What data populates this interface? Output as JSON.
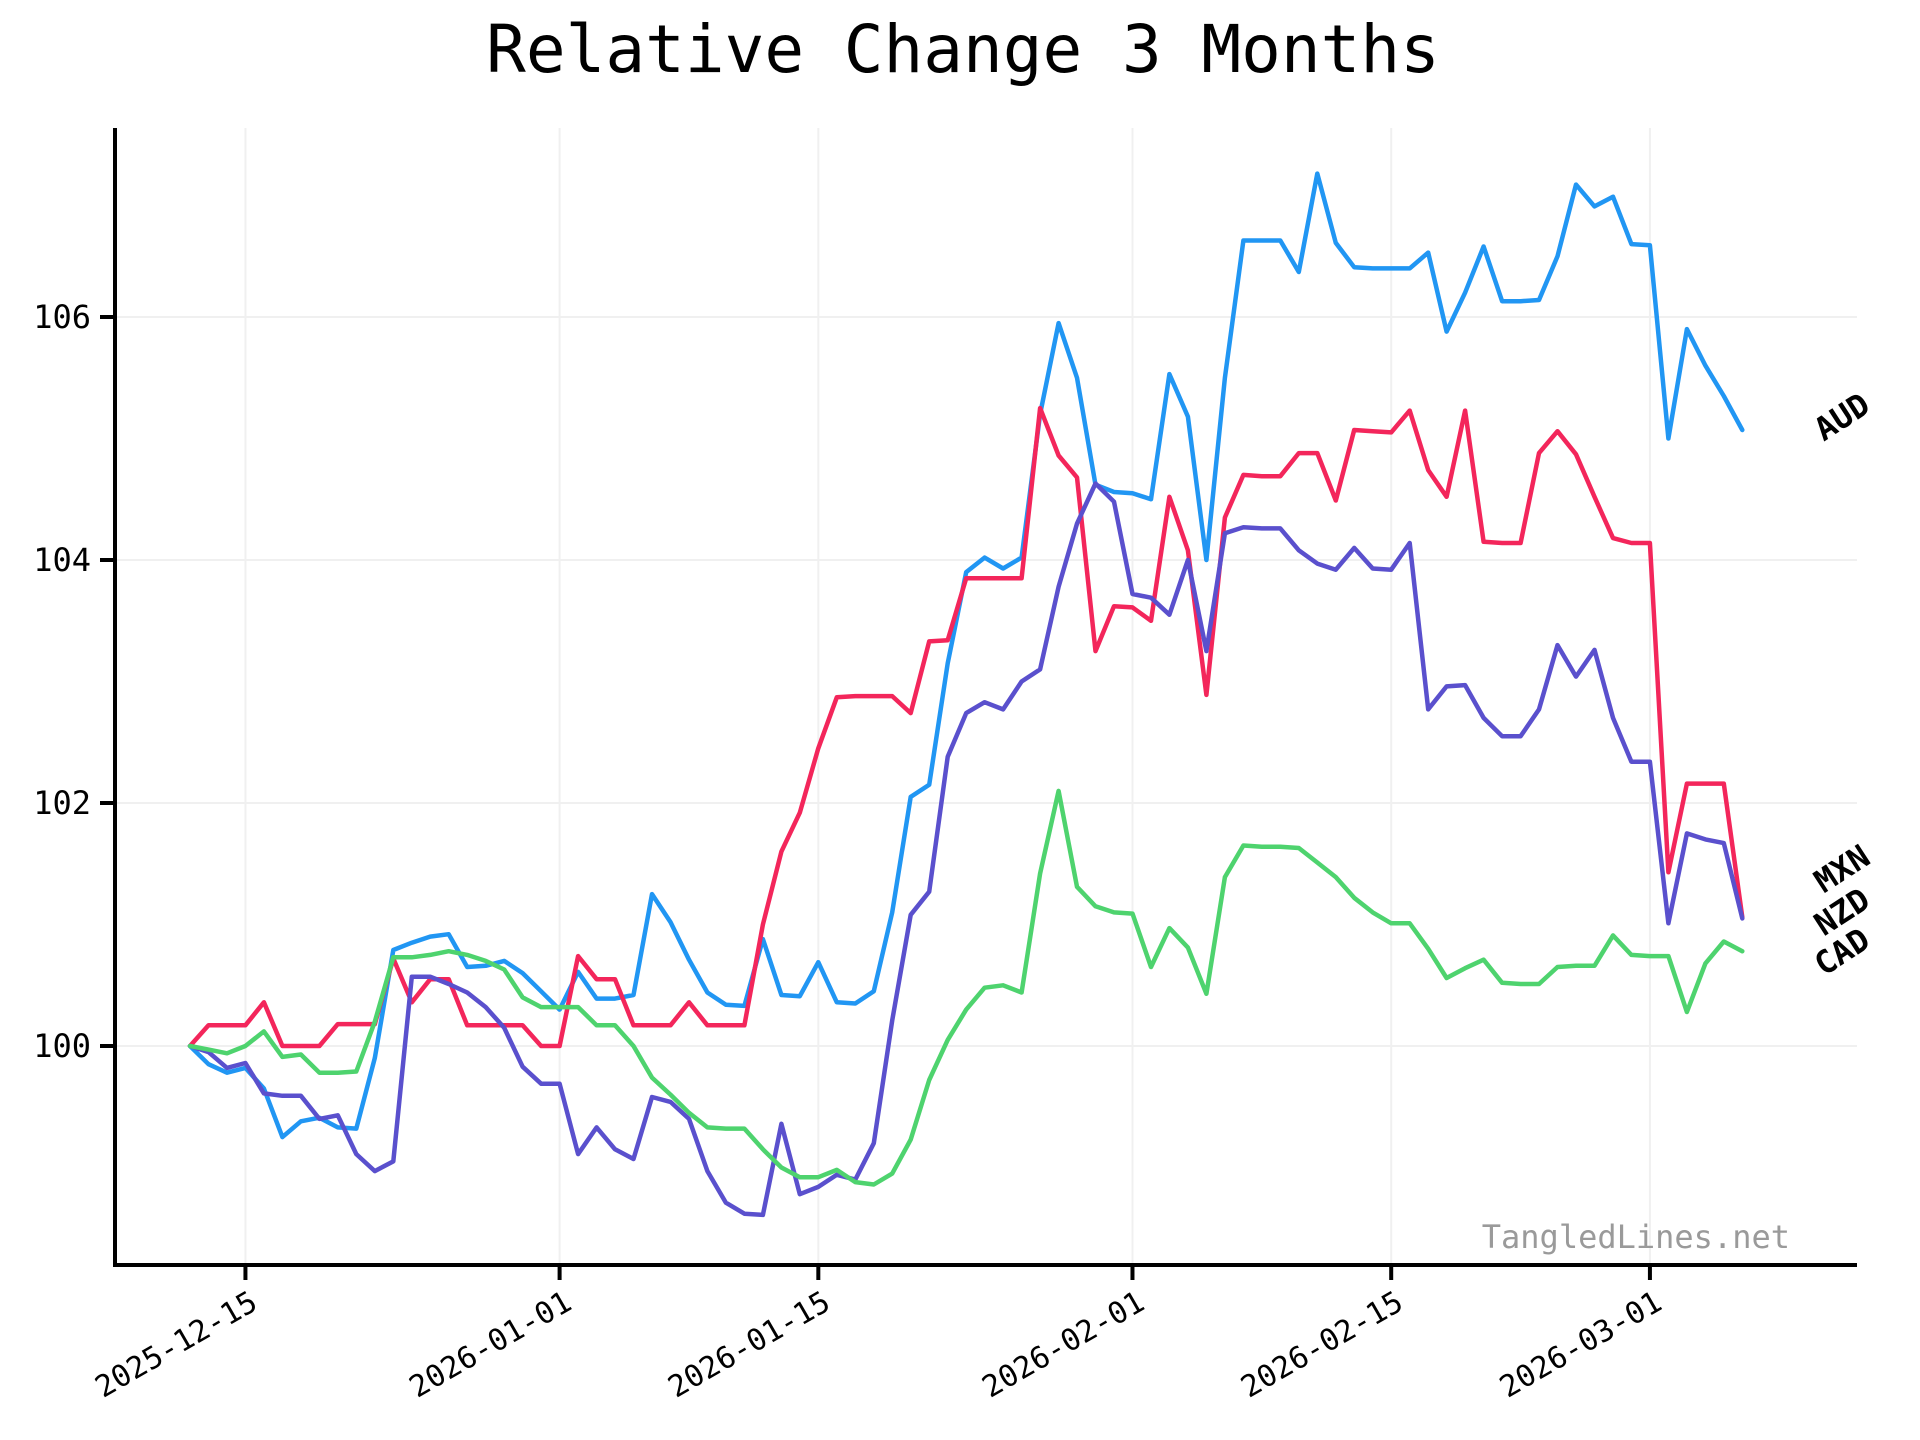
{
  "title": "Relative Change 3 Months",
  "watermark": {
    "text": "TangledLines.net"
  },
  "chart_data": {
    "type": "line",
    "title": "Relative Change 3 Months",
    "xlabel": "",
    "ylabel": "",
    "grid": true,
    "background": "#ffffff",
    "gridline_color": "#f0f0f0",
    "spine_color": "#000000",
    "x_start_date": "2025-12-12",
    "x_end_date": "2026-03-06",
    "points_per_series": 85,
    "x_tick_labels": [
      "2025-12-15",
      "2026-01-01",
      "2026-01-15",
      "2026-02-01",
      "2026-02-15",
      "2026-03-01"
    ],
    "x_tick_day_index": [
      3,
      20,
      34,
      51,
      65,
      79
    ],
    "y_ticks": [
      100,
      102,
      104,
      106
    ],
    "y_tick_labels": [
      "100",
      "102",
      "104",
      "106"
    ],
    "ylim": [
      98.2,
      107.55
    ],
    "legend_position": "right-edge-inline-labels",
    "series": [
      {
        "name": "AUD",
        "color": "#2196f3",
        "label_anchor": {
          "day": 89.7,
          "value": 105.19,
          "rotation": -33
        },
        "values": [
          100,
          99.85,
          99.78,
          99.82,
          99.65,
          99.25,
          99.38,
          99.41,
          99.33,
          99.32,
          99.9,
          100.79,
          100.85,
          100.9,
          100.92,
          100.65,
          100.66,
          100.7,
          100.6,
          100.45,
          100.3,
          100.61,
          100.39,
          100.39,
          100.42,
          101.25,
          101.02,
          100.71,
          100.44,
          100.34,
          100.33,
          100.88,
          100.42,
          100.41,
          100.69,
          100.36,
          100.35,
          100.45,
          101.1,
          102.05,
          102.15,
          103.15,
          103.9,
          104.02,
          103.93,
          104.02,
          105.2,
          105.95,
          105.5,
          104.62,
          104.56,
          104.55,
          104.5,
          105.53,
          105.18,
          104.0,
          105.5,
          106.63,
          106.63,
          106.63,
          106.37,
          107.18,
          106.61,
          106.41,
          106.4,
          106.4,
          106.4,
          106.53,
          105.88,
          106.2,
          106.58,
          106.13,
          106.13,
          106.14,
          106.5,
          107.09,
          106.91,
          106.99,
          106.6,
          106.59,
          105.0,
          105.9,
          105.6,
          105.35,
          105.07
        ]
      },
      {
        "name": "MXN",
        "color": "#f3265b",
        "label_anchor": {
          "day": 89.7,
          "value": 101.47,
          "rotation": -33
        },
        "values": [
          100,
          100.17,
          100.17,
          100.17,
          100.36,
          100,
          100,
          100,
          100.18,
          100.18,
          100.18,
          100.72,
          100.36,
          100.55,
          100.55,
          100.17,
          100.17,
          100.17,
          100.17,
          100,
          100,
          100.74,
          100.55,
          100.55,
          100.17,
          100.17,
          100.17,
          100.36,
          100.17,
          100.17,
          100.17,
          101.0,
          101.6,
          101.92,
          102.45,
          102.87,
          102.88,
          102.88,
          102.88,
          102.74,
          103.33,
          103.34,
          103.85,
          103.85,
          103.85,
          103.85,
          105.25,
          104.86,
          104.68,
          103.25,
          103.62,
          103.61,
          103.5,
          104.52,
          104.08,
          102.89,
          104.35,
          104.7,
          104.69,
          104.69,
          104.88,
          104.88,
          104.49,
          105.07,
          105.06,
          105.05,
          105.23,
          104.74,
          104.52,
          105.23,
          104.15,
          104.14,
          104.14,
          104.88,
          105.06,
          104.87,
          104.52,
          104.18,
          104.14,
          104.14,
          101.43,
          102.16,
          102.16,
          102.16,
          101.06
        ]
      },
      {
        "name": "NZD",
        "color": "#5a50cd",
        "label_anchor": {
          "day": 89.7,
          "value": 101.12,
          "rotation": -33
        },
        "values": [
          100,
          99.95,
          99.82,
          99.86,
          99.61,
          99.59,
          99.59,
          99.4,
          99.43,
          99.11,
          98.97,
          99.05,
          100.57,
          100.57,
          100.51,
          100.44,
          100.32,
          100.15,
          99.83,
          99.69,
          99.69,
          99.11,
          99.33,
          99.15,
          99.07,
          99.58,
          99.54,
          99.4,
          98.97,
          98.71,
          98.62,
          98.61,
          99.36,
          98.78,
          98.84,
          98.94,
          98.9,
          99.2,
          100.21,
          101.08,
          101.27,
          102.38,
          102.74,
          102.83,
          102.77,
          103.0,
          103.1,
          103.78,
          104.3,
          104.63,
          104.48,
          103.72,
          103.69,
          103.55,
          104.0,
          103.25,
          104.22,
          104.27,
          104.26,
          104.26,
          104.08,
          103.97,
          103.92,
          104.1,
          103.93,
          103.92,
          104.14,
          102.77,
          102.96,
          102.97,
          102.7,
          102.55,
          102.55,
          102.77,
          103.3,
          103.04,
          103.26,
          102.7,
          102.34,
          102.34,
          101.01,
          101.75,
          101.7,
          101.67,
          101.05
        ]
      },
      {
        "name": "CAD",
        "color": "#4ed36e",
        "label_anchor": {
          "day": 89.7,
          "value": 100.79,
          "rotation": -33
        },
        "values": [
          100,
          99.97,
          99.94,
          100,
          100.12,
          99.91,
          99.93,
          99.78,
          99.78,
          99.79,
          100.2,
          100.73,
          100.73,
          100.75,
          100.78,
          100.75,
          100.7,
          100.63,
          100.4,
          100.32,
          100.32,
          100.32,
          100.17,
          100.17,
          100.0,
          99.74,
          99.6,
          99.45,
          99.33,
          99.32,
          99.32,
          99.15,
          99.0,
          98.92,
          98.92,
          98.98,
          98.88,
          98.86,
          98.95,
          99.23,
          99.72,
          100.05,
          100.3,
          100.48,
          100.5,
          100.44,
          101.42,
          102.1,
          101.31,
          101.15,
          101.1,
          101.09,
          100.65,
          100.97,
          100.81,
          100.43,
          101.39,
          101.65,
          101.64,
          101.64,
          101.63,
          101.51,
          101.39,
          101.22,
          101.1,
          101.01,
          101.01,
          100.8,
          100.56,
          100.64,
          100.71,
          100.52,
          100.51,
          100.51,
          100.65,
          100.66,
          100.66,
          100.91,
          100.75,
          100.74,
          100.74,
          100.28,
          100.68,
          100.86,
          100.78
        ]
      }
    ]
  }
}
